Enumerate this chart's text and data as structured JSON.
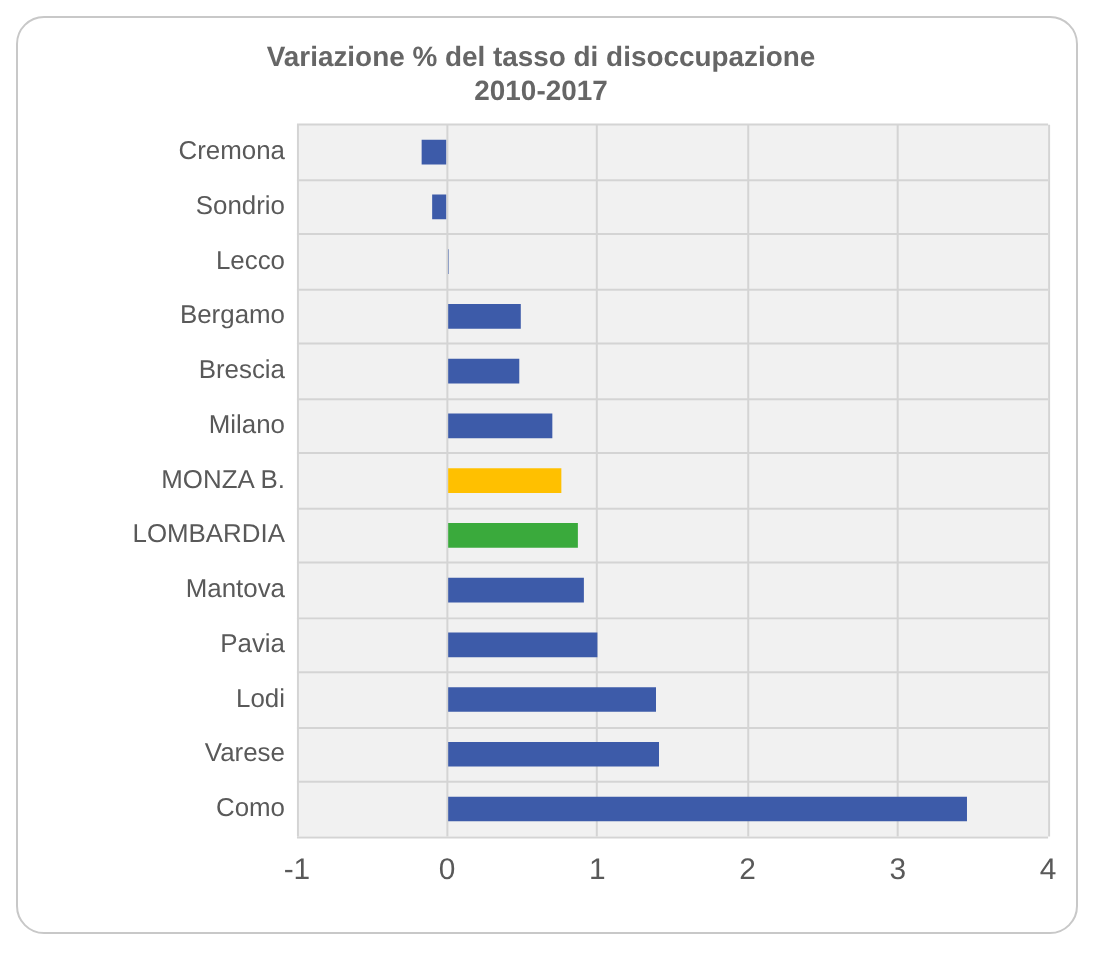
{
  "chart_data": {
    "type": "bar",
    "orientation": "horizontal",
    "title": "Variazione % del tasso di disoccupazione\n2010-2017",
    "categories": [
      "Cremona",
      "Sondrio",
      "Lecco",
      "Bergamo",
      "Brescia",
      "Milano",
      "MONZA B.",
      "LOMBARDIA",
      "Mantova",
      "Pavia",
      "Lodi",
      "Varese",
      "Como"
    ],
    "values": [
      -0.17,
      -0.1,
      0.01,
      0.49,
      0.48,
      0.7,
      0.76,
      0.87,
      0.91,
      1.0,
      1.39,
      1.41,
      3.46
    ],
    "colors": [
      "#3d5ba9",
      "#3d5ba9",
      "#3d5ba9",
      "#3d5ba9",
      "#3d5ba9",
      "#3d5ba9",
      "#ffc000",
      "#3aaa3c",
      "#3d5ba9",
      "#3d5ba9",
      "#3d5ba9",
      "#3d5ba9",
      "#3d5ba9"
    ],
    "xlim": [
      -1,
      4
    ],
    "xticks": [
      -1,
      0,
      1,
      2,
      3,
      4
    ],
    "grid": true
  }
}
